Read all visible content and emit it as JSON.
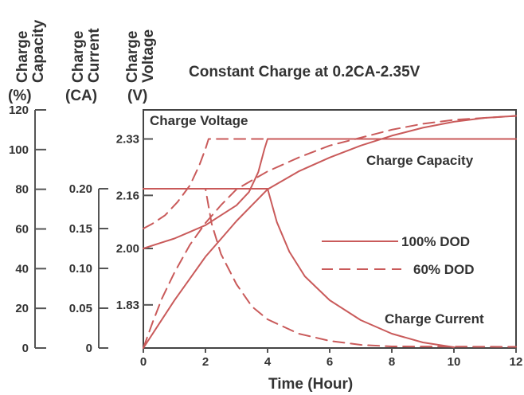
{
  "chart_data": {
    "type": "line",
    "title": "Constant Charge at 0.2CA-2.35V",
    "xlabel": "Time (Hour)",
    "xlim": [
      0,
      12
    ],
    "x_ticks": [
      "0",
      "2",
      "4",
      "6",
      "8",
      "10",
      "12"
    ],
    "axes": {
      "capacity": {
        "label_lines": [
          "Charge",
          "Capacity",
          "(%)"
        ],
        "range": [
          0,
          120
        ],
        "ticks": [
          "0",
          "20",
          "40",
          "60",
          "80",
          "100",
          "120"
        ]
      },
      "current": {
        "label_lines": [
          "Charge",
          "Current",
          "(CA)"
        ],
        "range": [
          0,
          0.2
        ],
        "ticks": [
          "0",
          "0.05",
          "0.10",
          "0.15",
          "0.20"
        ]
      },
      "voltage": {
        "label_lines": [
          "Charge",
          "(V)",
          "Voltage"
        ],
        "range": [
          1.7,
          2.36
        ],
        "ticks": [
          "1.83",
          "2.00",
          "2.16",
          "2.33"
        ]
      }
    },
    "legend": [
      {
        "label": "100% DOD",
        "style": "solid"
      },
      {
        "label": "60% DOD",
        "style": "dashed"
      }
    ],
    "annotations": {
      "voltage": "Charge Voltage",
      "capacity": "Charge Capacity",
      "current": "Charge Current"
    },
    "series": [
      {
        "axis": "voltage",
        "style": "solid",
        "points": [
          [
            0,
            2.0
          ],
          [
            0.5,
            2.015
          ],
          [
            1,
            2.03
          ],
          [
            1.5,
            2.05
          ],
          [
            2,
            2.07
          ],
          [
            2.5,
            2.1
          ],
          [
            3,
            2.13
          ],
          [
            3.4,
            2.17
          ],
          [
            3.7,
            2.23
          ],
          [
            3.9,
            2.3
          ],
          [
            4,
            2.33
          ],
          [
            12,
            2.33
          ]
        ]
      },
      {
        "axis": "voltage",
        "style": "dashed",
        "points": [
          [
            0,
            2.06
          ],
          [
            0.3,
            2.075
          ],
          [
            0.7,
            2.1
          ],
          [
            1.1,
            2.14
          ],
          [
            1.5,
            2.19
          ],
          [
            1.8,
            2.25
          ],
          [
            2,
            2.3
          ],
          [
            2.1,
            2.33
          ],
          [
            12,
            2.33
          ]
        ]
      },
      {
        "axis": "capacity",
        "style": "solid",
        "points": [
          [
            0,
            0
          ],
          [
            0.5,
            12
          ],
          [
            1,
            24
          ],
          [
            1.5,
            35
          ],
          [
            2,
            46
          ],
          [
            2.5,
            55
          ],
          [
            3,
            64
          ],
          [
            3.5,
            72
          ],
          [
            4,
            80
          ],
          [
            5,
            89
          ],
          [
            6,
            96
          ],
          [
            7,
            102
          ],
          [
            8,
            107
          ],
          [
            9,
            111
          ],
          [
            10,
            114
          ],
          [
            11,
            116
          ],
          [
            12,
            117
          ]
        ]
      },
      {
        "axis": "capacity",
        "style": "dashed",
        "points": [
          [
            0,
            0
          ],
          [
            0.3,
            13
          ],
          [
            0.6,
            25
          ],
          [
            1,
            38
          ],
          [
            1.5,
            52
          ],
          [
            2,
            63
          ],
          [
            2.5,
            72
          ],
          [
            3,
            80
          ],
          [
            4,
            89
          ],
          [
            5,
            96
          ],
          [
            6,
            102
          ],
          [
            7,
            106
          ],
          [
            8,
            110
          ],
          [
            9,
            113
          ],
          [
            10,
            115
          ],
          [
            11,
            116
          ],
          [
            12,
            117
          ]
        ]
      },
      {
        "axis": "current",
        "style": "solid",
        "points": [
          [
            0,
            0.2
          ],
          [
            4,
            0.2
          ],
          [
            4.3,
            0.158
          ],
          [
            4.7,
            0.121
          ],
          [
            5.2,
            0.09
          ],
          [
            6,
            0.06
          ],
          [
            7,
            0.035
          ],
          [
            8,
            0.018
          ],
          [
            9,
            0.007
          ],
          [
            10,
            0.001
          ]
        ]
      },
      {
        "axis": "current",
        "style": "dashed",
        "points": [
          [
            0,
            0.2
          ],
          [
            2,
            0.2
          ],
          [
            2.2,
            0.156
          ],
          [
            2.5,
            0.118
          ],
          [
            3,
            0.08
          ],
          [
            3.5,
            0.052
          ],
          [
            4,
            0.036
          ],
          [
            5,
            0.018
          ],
          [
            6,
            0.009
          ],
          [
            7,
            0.004
          ],
          [
            8,
            0.002
          ],
          [
            12,
            0.0015
          ]
        ]
      }
    ],
    "grid": false,
    "legend_position": "right"
  }
}
